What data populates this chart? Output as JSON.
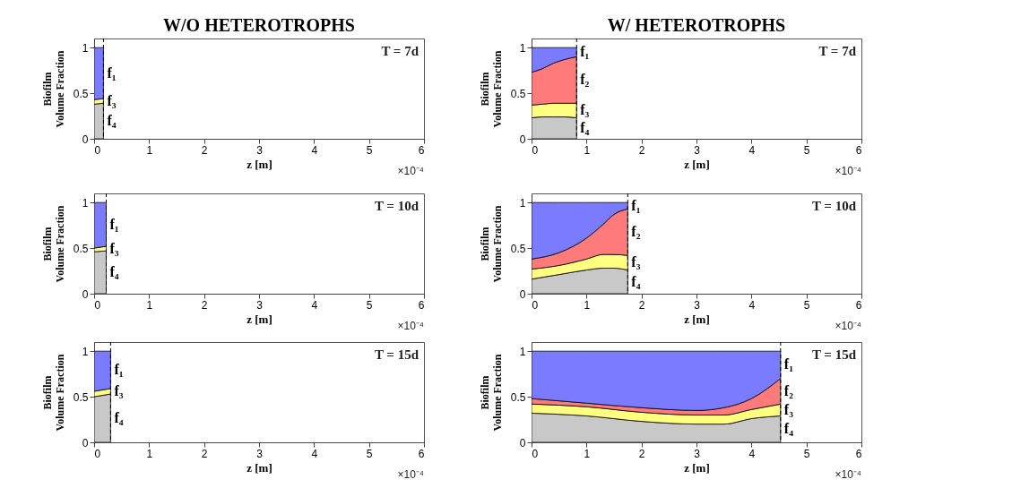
{
  "chart_data": [
    {
      "type": "area",
      "stacked": true,
      "title": "W/O HETEROTROPHS",
      "xlabel": "z [m]",
      "ylabel": "Biofilm\nVolume Fraction",
      "xlim": [
        0,
        6
      ],
      "xticks": [
        0,
        1,
        2,
        3,
        4,
        5,
        6
      ],
      "ylim": [
        0,
        1.1
      ],
      "yticks": [
        0,
        0.5,
        1
      ],
      "grid": false,
      "legend": false,
      "annotations": [
        "T = 7d",
        "×10⁻⁴"
      ],
      "ref_lines": [
        {
          "axis": "x",
          "value": 0.17,
          "line_style": "dashed"
        }
      ],
      "x": [
        0,
        0.17
      ],
      "series": [
        {
          "name": "f₄",
          "color": "#c8c8c8",
          "values": [
            0.38,
            0.39
          ]
        },
        {
          "name": "f₃",
          "color": "#ffff80",
          "values": [
            0.05,
            0.05
          ]
        },
        {
          "name": "f₁",
          "color": "#7b7bff",
          "values": [
            0.57,
            0.56
          ]
        }
      ]
    },
    {
      "type": "area",
      "stacked": true,
      "title": "W/ HETEROTROPHS",
      "xlabel": "z [m]",
      "ylabel": "Biofilm\nVolume Fraction",
      "xlim": [
        0,
        6
      ],
      "xticks": [
        0,
        1,
        2,
        3,
        4,
        5,
        6
      ],
      "ylim": [
        0,
        1.1
      ],
      "yticks": [
        0,
        0.5,
        1
      ],
      "grid": false,
      "legend": false,
      "annotations": [
        "T = 7d",
        "×10⁻⁴"
      ],
      "ref_lines": [
        {
          "axis": "x",
          "value": 0.82,
          "line_style": "dashed"
        }
      ],
      "x": [
        0,
        0.2,
        0.4,
        0.6,
        0.82
      ],
      "series": [
        {
          "name": "f₄",
          "color": "#c8c8c8",
          "values": [
            0.23,
            0.24,
            0.24,
            0.24,
            0.23
          ]
        },
        {
          "name": "f₃",
          "color": "#ffff80",
          "values": [
            0.14,
            0.14,
            0.15,
            0.15,
            0.16
          ]
        },
        {
          "name": "f₂",
          "color": "#ff7b7b",
          "values": [
            0.36,
            0.39,
            0.44,
            0.48,
            0.51
          ]
        },
        {
          "name": "f₁",
          "color": "#7b7bff",
          "values": [
            0.27,
            0.23,
            0.17,
            0.13,
            0.1
          ]
        }
      ]
    },
    {
      "type": "area",
      "stacked": true,
      "xlabel": "z [m]",
      "ylabel": "Biofilm\nVolume Fraction",
      "xlim": [
        0,
        6
      ],
      "xticks": [
        0,
        1,
        2,
        3,
        4,
        5,
        6
      ],
      "ylim": [
        0,
        1.1
      ],
      "yticks": [
        0,
        0.5,
        1
      ],
      "grid": false,
      "legend": false,
      "annotations": [
        "T = 10d",
        "×10⁻⁴"
      ],
      "ref_lines": [
        {
          "axis": "x",
          "value": 0.22,
          "line_style": "dashed"
        }
      ],
      "x": [
        0,
        0.22
      ],
      "series": [
        {
          "name": "f₄",
          "color": "#c8c8c8",
          "values": [
            0.46,
            0.47
          ]
        },
        {
          "name": "f₃",
          "color": "#ffff80",
          "values": [
            0.04,
            0.05
          ]
        },
        {
          "name": "f₁",
          "color": "#7b7bff",
          "values": [
            0.5,
            0.48
          ]
        }
      ]
    },
    {
      "type": "area",
      "stacked": true,
      "xlabel": "z [m]",
      "ylabel": "Biofilm\nVolume Fraction",
      "xlim": [
        0,
        6
      ],
      "xticks": [
        0,
        1,
        2,
        3,
        4,
        5,
        6
      ],
      "ylim": [
        0,
        1.1
      ],
      "yticks": [
        0,
        0.5,
        1
      ],
      "grid": false,
      "legend": false,
      "annotations": [
        "T = 10d",
        "×10⁻⁴"
      ],
      "ref_lines": [
        {
          "axis": "x",
          "value": 1.75,
          "line_style": "dashed"
        }
      ],
      "x": [
        0,
        0.5,
        1,
        1.3,
        1.5,
        1.75
      ],
      "series": [
        {
          "name": "f₄",
          "color": "#c8c8c8",
          "values": [
            0.16,
            0.21,
            0.26,
            0.28,
            0.28,
            0.26
          ]
        },
        {
          "name": "f₃",
          "color": "#ffff80",
          "values": [
            0.11,
            0.1,
            0.12,
            0.15,
            0.15,
            0.16
          ]
        },
        {
          "name": "f₂",
          "color": "#ff7b7b",
          "values": [
            0.11,
            0.14,
            0.23,
            0.33,
            0.44,
            0.51
          ]
        },
        {
          "name": "f₁",
          "color": "#7b7bff",
          "values": [
            0.62,
            0.55,
            0.39,
            0.24,
            0.13,
            0.07
          ]
        }
      ]
    },
    {
      "type": "area",
      "stacked": true,
      "xlabel": "z [m]",
      "ylabel": "Biofilm\nVolume Fraction",
      "xlim": [
        0,
        6
      ],
      "xticks": [
        0,
        1,
        2,
        3,
        4,
        5,
        6
      ],
      "ylim": [
        0,
        1.1
      ],
      "yticks": [
        0,
        0.5,
        1
      ],
      "grid": false,
      "legend": false,
      "annotations": [
        "T = 15d",
        "×10⁻⁴"
      ],
      "ref_lines": [
        {
          "axis": "x",
          "value": 0.3,
          "line_style": "dashed"
        }
      ],
      "x": [
        0,
        0.3
      ],
      "series": [
        {
          "name": "f₄",
          "color": "#c8c8c8",
          "values": [
            0.5,
            0.53
          ]
        },
        {
          "name": "f₃",
          "color": "#ffff80",
          "values": [
            0.06,
            0.06
          ]
        },
        {
          "name": "f₁",
          "color": "#7b7bff",
          "values": [
            0.44,
            0.41
          ]
        }
      ]
    },
    {
      "type": "area",
      "stacked": true,
      "xlabel": "z [m]",
      "ylabel": "Biofilm\nVolume Fraction",
      "xlim": [
        0,
        6
      ],
      "xticks": [
        0,
        1,
        2,
        3,
        4,
        5,
        6
      ],
      "ylim": [
        0,
        1.1
      ],
      "yticks": [
        0,
        0.5,
        1
      ],
      "grid": false,
      "legend": false,
      "annotations": [
        "T = 15d",
        "×10⁻⁴"
      ],
      "ref_lines": [
        {
          "axis": "x",
          "value": 4.53,
          "line_style": "dashed"
        }
      ],
      "x": [
        0,
        1,
        2,
        3,
        3.5,
        4,
        4.53
      ],
      "series": [
        {
          "name": "f₄",
          "color": "#c8c8c8",
          "values": [
            0.32,
            0.29,
            0.23,
            0.2,
            0.2,
            0.26,
            0.29
          ]
        },
        {
          "name": "f₃",
          "color": "#ffff80",
          "values": [
            0.1,
            0.1,
            0.1,
            0.1,
            0.1,
            0.1,
            0.13
          ]
        },
        {
          "name": "f₂",
          "color": "#ff7b7b",
          "values": [
            0.06,
            0.04,
            0.05,
            0.05,
            0.08,
            0.12,
            0.28
          ]
        },
        {
          "name": "f₁",
          "color": "#7b7bff",
          "values": [
            0.52,
            0.57,
            0.62,
            0.65,
            0.62,
            0.52,
            0.3
          ]
        }
      ]
    }
  ]
}
